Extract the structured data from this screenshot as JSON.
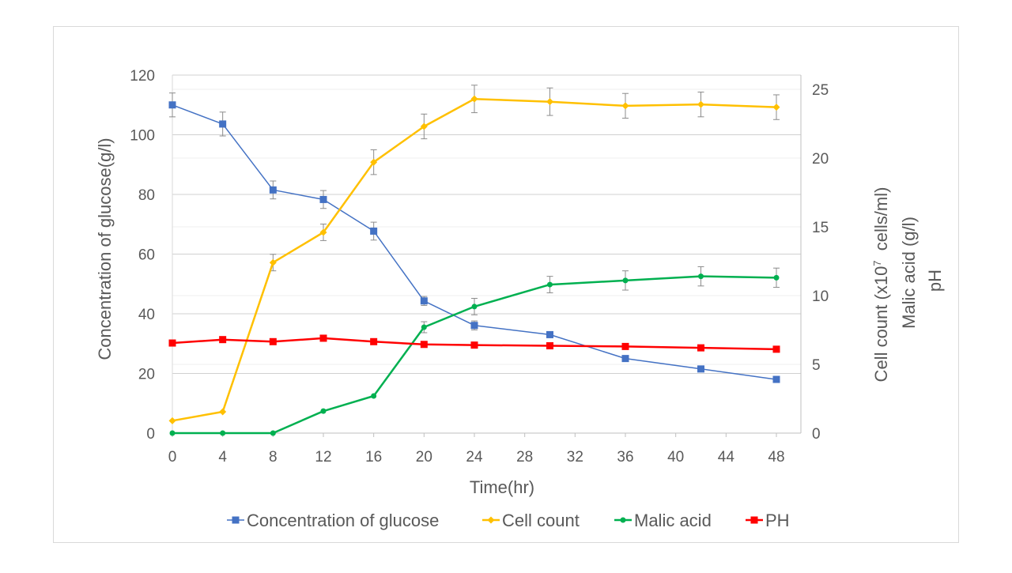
{
  "chart_data": {
    "type": "line",
    "title": "",
    "xlabel": "Time(hr)",
    "ylabel_left": "Concentration of glucose(g/l)",
    "ylabel_right": [
      "Cell count (x10",
      "7",
      "  cells/ml)",
      "Malic acid (g/l)",
      "pH"
    ],
    "x_ticks": [
      "0",
      "4",
      "8",
      "12",
      "16",
      "20",
      "24",
      "28",
      "32",
      "36",
      "40",
      "44",
      "48"
    ],
    "xlim": [
      0,
      50
    ],
    "ylim_left": [
      0,
      120
    ],
    "ylim_right": [
      0,
      25
    ],
    "left_ticks": [
      "0",
      "20",
      "40",
      "60",
      "80",
      "100",
      "120"
    ],
    "right_ticks": [
      "0",
      "5",
      "10",
      "15",
      "20",
      "25"
    ],
    "x": [
      0,
      4,
      8,
      12,
      16,
      20,
      24,
      30,
      36,
      42,
      48
    ],
    "legend_position": "bottom",
    "series": [
      {
        "name": "Concentration of glucose",
        "axis": "left",
        "color": "#4472C4",
        "marker": "square",
        "values": [
          110,
          103.6,
          81.5,
          78.3,
          67.7,
          44.3,
          36.1,
          33.0,
          25.0,
          21.5,
          18.0
        ],
        "errors": [
          4,
          4,
          3,
          3,
          3,
          1.5,
          1.5,
          0,
          0,
          0,
          0
        ]
      },
      {
        "name": "Cell count",
        "axis": "right",
        "color": "#FFC000",
        "marker": "diamond",
        "values": [
          0.9,
          1.55,
          12.4,
          14.6,
          19.7,
          22.3,
          24.3,
          24.1,
          23.8,
          23.9,
          23.7
        ],
        "errors": [
          0,
          0,
          0.6,
          0.6,
          0.9,
          0.9,
          1.0,
          1.0,
          0.9,
          0.9,
          0.9
        ]
      },
      {
        "name": "Malic acid",
        "axis": "right",
        "color": "#00B050",
        "marker": "circle",
        "values": [
          0,
          0,
          0,
          1.6,
          2.7,
          7.7,
          9.2,
          10.8,
          11.1,
          11.4,
          11.3
        ],
        "errors": [
          0,
          0,
          0,
          0,
          0,
          0.4,
          0.6,
          0.6,
          0.7,
          0.7,
          0.7
        ]
      },
      {
        "name": "PH",
        "axis": "right",
        "color": "#FF0000",
        "marker": "square",
        "values": [
          6.55,
          6.8,
          6.65,
          6.9,
          6.65,
          6.45,
          6.4,
          6.35,
          6.3,
          6.2,
          6.1
        ],
        "errors": [
          0,
          0,
          0,
          0,
          0,
          0,
          0,
          0,
          0,
          0,
          0
        ]
      }
    ]
  }
}
